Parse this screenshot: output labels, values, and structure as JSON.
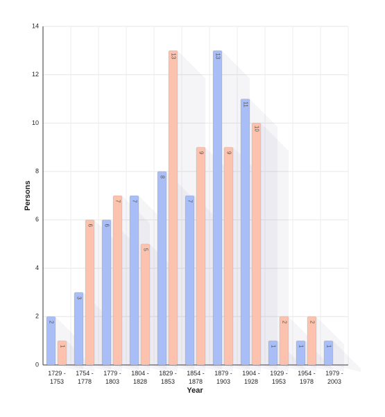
{
  "chart_data": {
    "type": "bar",
    "x_label": "Year",
    "y_label": "Persons",
    "categories": [
      "1729 - 1753",
      "1754 - 1778",
      "1779 - 1803",
      "1804 - 1828",
      "1829 - 1853",
      "1854 - 1878",
      "1879 - 1903",
      "1904 - 1928",
      "1929 - 1953",
      "1954 - 1978",
      "1979 - 2003"
    ],
    "series": [
      {
        "color": "#a9bdf7",
        "values": [
          2,
          3,
          6,
          7,
          8,
          7,
          13,
          11,
          1,
          1,
          1
        ]
      },
      {
        "color": "#fcc2ad",
        "values": [
          1,
          6,
          7,
          5,
          13,
          9,
          9,
          10,
          2,
          2,
          null
        ]
      }
    ],
    "ylim": [
      0,
      14
    ],
    "yticks": [
      0,
      2,
      4,
      6,
      8,
      10,
      12,
      14
    ],
    "grid": true
  }
}
